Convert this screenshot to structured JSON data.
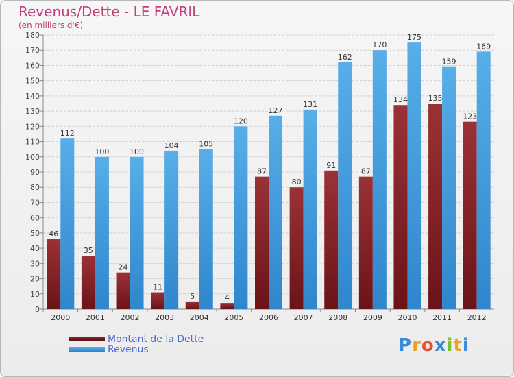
{
  "header": {
    "title": "Revenus/Dette - LE FAVRIL",
    "subtitle": "(en milliers d'€)"
  },
  "logo": {
    "letters": [
      "P",
      "r",
      "o",
      "x",
      "i",
      "t",
      "i"
    ],
    "colors": [
      "#3a8ad8",
      "#f0a020",
      "#e85030",
      "#3a8ad8",
      "#80c030",
      "#f0a020",
      "#3a8ad8"
    ]
  },
  "chart_data": {
    "type": "bar",
    "title": "Revenus/Dette - LE FAVRIL",
    "subtitle": "(en milliers d'€)",
    "categories": [
      "2000",
      "2001",
      "2002",
      "2003",
      "2004",
      "2005",
      "2006",
      "2007",
      "2008",
      "2009",
      "2010",
      "2011",
      "2012"
    ],
    "series": [
      {
        "name": "Montant de la Dette",
        "color": "#8a2a2e",
        "values": [
          46,
          35,
          24,
          11,
          5,
          4,
          87,
          80,
          91,
          87,
          134,
          135,
          123
        ]
      },
      {
        "name": "Revenus",
        "color": "#4aa0e0",
        "values": [
          112,
          100,
          100,
          104,
          105,
          120,
          127,
          131,
          162,
          170,
          175,
          159,
          169
        ]
      }
    ],
    "ylim": [
      0,
      180
    ],
    "yticks": [
      "0",
      "10",
      "20",
      "30",
      "40",
      "50",
      "60",
      "70",
      "80",
      "90",
      "100",
      "110",
      "120",
      "130",
      "140",
      "150",
      "160",
      "170",
      "180"
    ],
    "grid": true,
    "legend": "bottom-left"
  }
}
